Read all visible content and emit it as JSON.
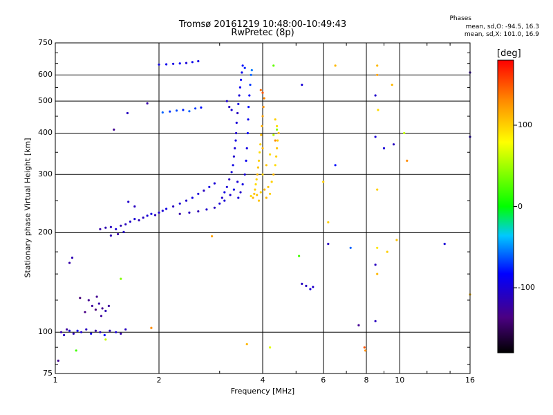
{
  "chart_data": {
    "type": "scatter",
    "title": "Tromsø 20161219 10:48:00-10:49:43",
    "subtitle": "RwPretec (8p)",
    "xlabel": "Frequency [MHz]",
    "ylabel": "Stationary phase Virtual Height [km]",
    "x_scale": "log",
    "y_scale": "log",
    "xlim": [
      1,
      16
    ],
    "ylim": [
      75,
      750
    ],
    "x_ticks": [
      1,
      2,
      4,
      6,
      8,
      10,
      16
    ],
    "x_tick_labels": [
      "1",
      "2",
      "4",
      "6",
      "8",
      "10",
      "16"
    ],
    "y_ticks": [
      75,
      100,
      200,
      300,
      400,
      500,
      600,
      750
    ],
    "y_tick_labels": [
      "75",
      "100",
      "200",
      "300",
      "400",
      "500",
      "600",
      "750"
    ],
    "grid": true,
    "colorbar": {
      "label": "[deg]",
      "range": [
        -180,
        180
      ],
      "ticks": [
        -100,
        0,
        100
      ],
      "tick_labels": [
        "-100",
        "0",
        "100"
      ],
      "colors": [
        "#000000",
        "#4b0082",
        "#0000ff",
        "#00c8ff",
        "#00ff00",
        "#ffff00",
        "#ff8c00",
        "#ff0000"
      ]
    },
    "phase_box": {
      "heading": "Phases",
      "line1": "mean, sd,O: -94.5, 16.3",
      "line2": "mean, sd,X: 101.0, 16.9"
    },
    "series": [
      {
        "mode": "O",
        "points": [
          [
            1.04,
            100,
            -120
          ],
          [
            1.06,
            98,
            -110
          ],
          [
            1.08,
            102,
            -125
          ],
          [
            1.1,
            101,
            -100
          ],
          [
            1.13,
            99,
            -115
          ],
          [
            1.16,
            101,
            -90
          ],
          [
            1.19,
            100,
            -105
          ],
          [
            1.23,
            102,
            -110
          ],
          [
            1.27,
            99,
            -95
          ],
          [
            1.31,
            101,
            -120
          ],
          [
            1.35,
            100,
            -110
          ],
          [
            1.39,
            98,
            -80
          ],
          [
            1.44,
            101,
            -115
          ],
          [
            1.5,
            100,
            -100
          ],
          [
            1.55,
            99,
            -120
          ],
          [
            1.6,
            102,
            -110
          ],
          [
            1.25,
            125,
            -130
          ],
          [
            1.28,
            120,
            -125
          ],
          [
            1.31,
            117,
            -140
          ],
          [
            1.34,
            122,
            -120
          ],
          [
            1.37,
            118,
            -130
          ],
          [
            1.4,
            116,
            -115
          ],
          [
            1.43,
            120,
            -125
          ],
          [
            1.22,
            115,
            -135
          ],
          [
            1.18,
            127,
            -140
          ],
          [
            1.32,
            128,
            -130
          ],
          [
            1.36,
            112,
            -125
          ],
          [
            1.1,
            162,
            -120
          ],
          [
            1.12,
            168,
            -115
          ],
          [
            1.35,
            205,
            -120
          ],
          [
            1.4,
            207,
            -115
          ],
          [
            1.45,
            208,
            -110
          ],
          [
            1.5,
            205,
            -100
          ],
          [
            1.55,
            210,
            -115
          ],
          [
            1.6,
            212,
            -110
          ],
          [
            1.65,
            216,
            -105
          ],
          [
            1.7,
            220,
            -100
          ],
          [
            1.75,
            218,
            -115
          ],
          [
            1.8,
            222,
            -110
          ],
          [
            1.85,
            225,
            -100
          ],
          [
            1.9,
            228,
            -95
          ],
          [
            1.95,
            226,
            -110
          ],
          [
            2.0,
            230,
            -105
          ],
          [
            2.05,
            233,
            -100
          ],
          [
            2.1,
            236,
            -95
          ],
          [
            1.45,
            196,
            -115
          ],
          [
            1.52,
            198,
            -120
          ],
          [
            1.58,
            201,
            -110
          ],
          [
            1.63,
            248,
            -105
          ],
          [
            1.7,
            240,
            -110
          ],
          [
            1.48,
            410,
            -130
          ],
          [
            1.62,
            460,
            -110
          ],
          [
            1.85,
            492,
            -120
          ],
          [
            2.0,
            645,
            -95
          ],
          [
            2.1,
            646,
            -90
          ],
          [
            2.2,
            648,
            -95
          ],
          [
            2.3,
            650,
            -85
          ],
          [
            2.4,
            652,
            -100
          ],
          [
            2.5,
            656,
            -90
          ],
          [
            2.6,
            660,
            -95
          ],
          [
            2.05,
            462,
            -60
          ],
          [
            2.15,
            465,
            -70
          ],
          [
            2.25,
            468,
            -65
          ],
          [
            2.35,
            470,
            -75
          ],
          [
            2.45,
            466,
            -60
          ],
          [
            2.55,
            475,
            -70
          ],
          [
            2.65,
            478,
            -80
          ],
          [
            2.2,
            240,
            -110
          ],
          [
            2.3,
            245,
            -100
          ],
          [
            2.4,
            250,
            -105
          ],
          [
            2.5,
            255,
            -95
          ],
          [
            2.6,
            262,
            -100
          ],
          [
            2.7,
            268,
            -110
          ],
          [
            2.8,
            275,
            -95
          ],
          [
            2.9,
            282,
            -100
          ],
          [
            2.3,
            228,
            -120
          ],
          [
            2.45,
            230,
            -110
          ],
          [
            2.6,
            232,
            -115
          ],
          [
            2.75,
            235,
            -105
          ],
          [
            2.9,
            238,
            -110
          ],
          [
            3.0,
            245,
            -100
          ],
          [
            3.05,
            255,
            -105
          ],
          [
            3.1,
            265,
            -95
          ],
          [
            3.15,
            275,
            -100
          ],
          [
            3.2,
            290,
            -110
          ],
          [
            3.25,
            305,
            -100
          ],
          [
            3.28,
            320,
            -95
          ],
          [
            3.3,
            340,
            -105
          ],
          [
            3.32,
            360,
            -100
          ],
          [
            3.34,
            380,
            -95
          ],
          [
            3.35,
            400,
            -105
          ],
          [
            3.36,
            430,
            -100
          ],
          [
            3.38,
            460,
            -110
          ],
          [
            3.4,
            490,
            -95
          ],
          [
            3.42,
            520,
            -100
          ],
          [
            3.44,
            550,
            -90
          ],
          [
            3.46,
            580,
            -85
          ],
          [
            3.48,
            610,
            -90
          ],
          [
            3.2,
            480,
            -110
          ],
          [
            3.15,
            500,
            -105
          ],
          [
            3.25,
            470,
            -100
          ],
          [
            3.5,
            640,
            -80
          ],
          [
            3.55,
            630,
            -75
          ],
          [
            3.4,
            255,
            -100
          ],
          [
            3.45,
            265,
            -105
          ],
          [
            3.5,
            280,
            -95
          ],
          [
            3.55,
            300,
            -100
          ],
          [
            3.58,
            330,
            -90
          ],
          [
            3.6,
            360,
            -95
          ],
          [
            3.62,
            400,
            -85
          ],
          [
            3.63,
            440,
            -90
          ],
          [
            3.64,
            480,
            -80
          ],
          [
            3.66,
            520,
            -85
          ],
          [
            3.68,
            560,
            -70
          ],
          [
            3.7,
            600,
            -60
          ],
          [
            3.72,
            620,
            -55
          ],
          [
            3.1,
            250,
            -100
          ],
          [
            3.22,
            260,
            -105
          ],
          [
            3.3,
            270,
            -95
          ],
          [
            3.38,
            285,
            -100
          ],
          [
            5.35,
            138,
            -110
          ],
          [
            5.5,
            135,
            -100
          ],
          [
            5.6,
            137,
            -105
          ],
          [
            8.5,
            160,
            -110
          ],
          [
            8.5,
            390,
            -100
          ],
          [
            8.5,
            520,
            -105
          ],
          [
            8.5,
            108,
            -110
          ],
          [
            9.6,
            370,
            -110
          ],
          [
            9.0,
            360,
            -100
          ],
          [
            16.0,
            390,
            -110
          ],
          [
            16.0,
            610,
            -120
          ],
          [
            5.2,
            140,
            -110
          ],
          [
            5.2,
            560,
            -100
          ],
          [
            7.6,
            105,
            -130
          ],
          [
            6.2,
            185,
            -110
          ],
          [
            6.5,
            320,
            -80
          ],
          [
            7.2,
            180,
            -60
          ],
          [
            13.5,
            185,
            -100
          ],
          [
            1.02,
            82,
            -130
          ]
        ]
      },
      {
        "mode": "X",
        "points": [
          [
            3.75,
            255,
            110
          ],
          [
            3.78,
            262,
            105
          ],
          [
            3.8,
            270,
            100
          ],
          [
            3.82,
            280,
            95
          ],
          [
            3.84,
            290,
            100
          ],
          [
            3.86,
            300,
            110
          ],
          [
            3.88,
            315,
            105
          ],
          [
            3.9,
            330,
            100
          ],
          [
            3.92,
            350,
            95
          ],
          [
            3.94,
            370,
            100
          ],
          [
            3.96,
            395,
            110
          ],
          [
            3.98,
            420,
            115
          ],
          [
            4.0,
            450,
            120
          ],
          [
            4.02,
            480,
            125
          ],
          [
            4.04,
            510,
            130
          ],
          [
            3.85,
            260,
            105
          ],
          [
            3.95,
            265,
            100
          ],
          [
            4.05,
            270,
            110
          ],
          [
            4.15,
            275,
            105
          ],
          [
            4.25,
            285,
            100
          ],
          [
            4.3,
            300,
            110
          ],
          [
            4.35,
            320,
            95
          ],
          [
            4.38,
            340,
            100
          ],
          [
            4.4,
            360,
            105
          ],
          [
            4.42,
            380,
            100
          ],
          [
            4.45,
            400,
            110
          ],
          [
            4.4,
            420,
            95
          ],
          [
            4.35,
            440,
            100
          ],
          [
            3.9,
            250,
            105
          ],
          [
            4.1,
            255,
            110
          ],
          [
            4.2,
            262,
            100
          ],
          [
            3.7,
            258,
            95
          ],
          [
            4.0,
            300,
            100
          ],
          [
            4.1,
            320,
            105
          ],
          [
            4.2,
            345,
            95
          ],
          [
            4.0,
            360,
            110
          ],
          [
            3.95,
            540,
            140
          ],
          [
            4.0,
            530,
            150
          ],
          [
            4.3,
            395,
            60
          ],
          [
            4.4,
            410,
            40
          ],
          [
            4.35,
            380,
            130
          ],
          [
            4.3,
            640,
            30
          ],
          [
            8.6,
            640,
            110
          ],
          [
            8.6,
            600,
            120
          ],
          [
            8.6,
            270,
            100
          ],
          [
            8.6,
            180,
            90
          ],
          [
            8.6,
            150,
            110
          ],
          [
            8.65,
            470,
            95
          ],
          [
            6.5,
            640,
            110
          ],
          [
            6.0,
            285,
            100
          ],
          [
            9.2,
            175,
            100
          ],
          [
            9.8,
            190,
            105
          ],
          [
            10.5,
            330,
            130
          ],
          [
            16.0,
            130,
            110
          ],
          [
            3.6,
            92,
            110
          ],
          [
            7.9,
            90,
            150
          ],
          [
            7.95,
            88,
            130
          ],
          [
            4.2,
            90,
            70
          ],
          [
            2.85,
            195,
            120
          ],
          [
            1.4,
            95,
            60
          ],
          [
            1.15,
            88,
            20
          ],
          [
            1.55,
            145,
            40
          ],
          [
            5.1,
            170,
            20
          ],
          [
            1.9,
            103,
            130
          ],
          [
            9.5,
            560,
            110
          ],
          [
            10.3,
            400,
            60
          ],
          [
            6.2,
            215,
            100
          ]
        ]
      }
    ]
  }
}
